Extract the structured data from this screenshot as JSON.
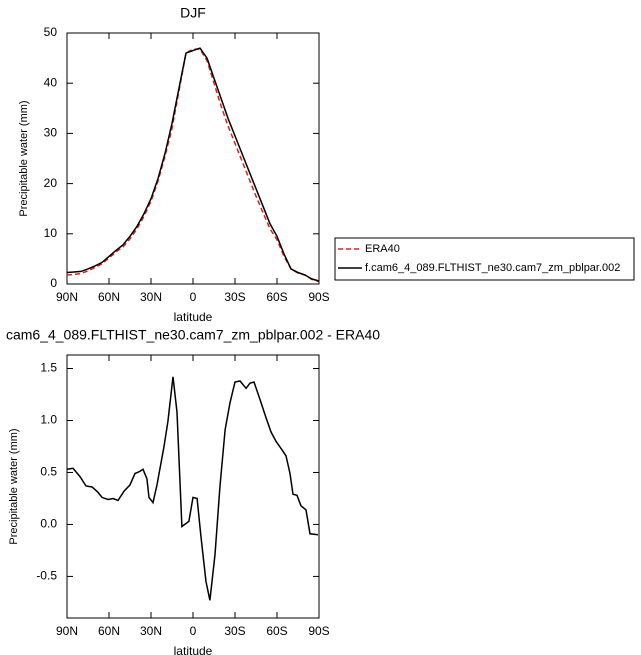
{
  "chart_data": [
    {
      "type": "line",
      "title": "DJF",
      "xlabel": "latitude",
      "ylabel": "Precipitable water (mm)",
      "x": [
        90,
        85,
        80,
        75,
        70,
        65,
        60,
        55,
        50,
        45,
        40,
        35,
        30,
        25,
        20,
        15,
        10,
        5,
        0,
        -5,
        -10,
        -15,
        -20,
        -25,
        -30,
        -35,
        -40,
        -45,
        -50,
        -55,
        -60,
        -65,
        -70,
        -75,
        -80,
        -85,
        -90
      ],
      "series": [
        {
          "name": "ERA40",
          "color": "#e0201b",
          "line_style": "dashed",
          "values": [
            1.8,
            1.9,
            2.1,
            2.6,
            3.3,
            4.0,
            5.2,
            6.4,
            7.4,
            9.0,
            11.0,
            13.5,
            16.5,
            20.5,
            25.5,
            31,
            38.5,
            46,
            46.8,
            46.8,
            44.5,
            40,
            35.5,
            31.5,
            28,
            24.5,
            21,
            17.5,
            14.2,
            11,
            8.8,
            5.5,
            3,
            2.2,
            1.8,
            0.9,
            0.5
          ]
        },
        {
          "name": "f.cam6_4_089.FLTHIST_ne30.cam7_zm_pblpar.002",
          "color": "#000000",
          "line_style": "solid",
          "values": [
            2.3,
            2.4,
            2.5,
            3.0,
            3.6,
            4.3,
            5.5,
            6.7,
            7.8,
            9.5,
            11.5,
            14,
            17,
            21,
            26,
            32,
            39,
            46,
            46.5,
            47,
            45,
            41,
            37,
            33,
            29.5,
            26,
            22.5,
            19,
            15.5,
            12,
            9.5,
            6,
            3,
            2.3,
            1.8,
            1.0,
            0.6
          ]
        }
      ],
      "xlim": [
        90,
        -90
      ],
      "xticks": [
        {
          "value": 90,
          "label": "90N"
        },
        {
          "value": 60,
          "label": "60N"
        },
        {
          "value": 30,
          "label": "30N"
        },
        0,
        {
          "value": -30,
          "label": "30S"
        },
        {
          "value": -60,
          "label": "60S"
        },
        {
          "value": -90,
          "label": "90S"
        }
      ],
      "ylim": [
        0,
        50
      ],
      "yticks": [
        0,
        10,
        20,
        30,
        40,
        50
      ],
      "legend": "right"
    },
    {
      "type": "line",
      "title": "cam6_4_089.FLTHIST_ne30.cam7_zm_pblpar.002 - ERA40",
      "xlabel": "latitude",
      "ylabel": "Precipitable water (mm)",
      "x": [
        90,
        85.7,
        80.7,
        76.4,
        72.1,
        67.9,
        65,
        60.7,
        57,
        53.6,
        49.3,
        45,
        41.4,
        37.9,
        35.7,
        32.9,
        31.4,
        28.6,
        25.7,
        20.7,
        17.9,
        14.3,
        11.4,
        7.9,
        2.9,
        0,
        -2.9,
        -5.7,
        -9.3,
        -12.1,
        -15.7,
        -19.3,
        -22.9,
        -26.4,
        -30,
        -33.6,
        -37.9,
        -40.7,
        -43.6,
        -47.9,
        -52.1,
        -55.7,
        -59.3,
        -62.9,
        -66.4,
        -69.3,
        -71.4,
        -74.3,
        -77.1,
        -80.7,
        -83.6,
        -89.3
      ],
      "values": [
        0.53,
        0.54,
        0.46,
        0.37,
        0.36,
        0.31,
        0.26,
        0.24,
        0.25,
        0.23,
        0.32,
        0.38,
        0.49,
        0.51,
        0.53,
        0.44,
        0.26,
        0.21,
        0.38,
        0.75,
        0.99,
        1.42,
        1.08,
        -0.02,
        0.03,
        0.26,
        0.25,
        -0.12,
        -0.55,
        -0.73,
        -0.29,
        0.37,
        0.91,
        1.17,
        1.37,
        1.38,
        1.31,
        1.36,
        1.37,
        1.2,
        1.03,
        0.89,
        0.8,
        0.73,
        0.66,
        0.49,
        0.29,
        0.28,
        0.18,
        0.14,
        -0.09,
        -0.1
      ],
      "color": "#000000",
      "xlim": [
        90,
        -90
      ],
      "xticks": [
        {
          "value": 90,
          "label": "90N"
        },
        {
          "value": 60,
          "label": "60N"
        },
        {
          "value": 30,
          "label": "30N"
        },
        0,
        {
          "value": -30,
          "label": "30S"
        },
        {
          "value": -60,
          "label": "60S"
        },
        {
          "value": -90,
          "label": "90S"
        }
      ],
      "ylim": [
        -0.9,
        1.63
      ],
      "yticks": [
        -0.5,
        {
          "value": 0,
          "label": "0.0"
        },
        0.5,
        {
          "value": 1,
          "label": "1.0"
        },
        1.5
      ]
    }
  ]
}
